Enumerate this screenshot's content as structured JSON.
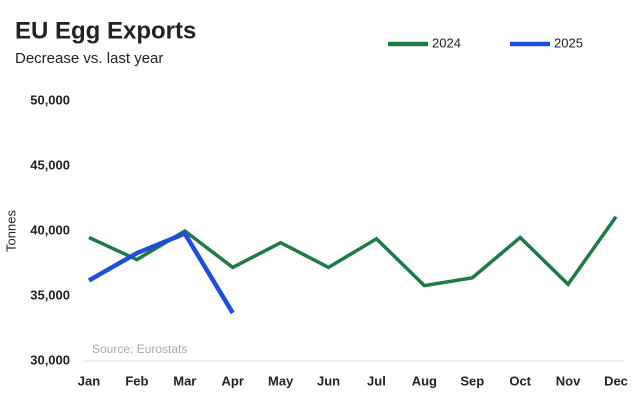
{
  "chart_data": {
    "type": "line",
    "title": "EU Egg Exports",
    "subtitle": "Decrease vs. last year",
    "y_label": "Tonnes",
    "annotation": "Source: Eurostats",
    "categories": [
      "Jan",
      "Feb",
      "Mar",
      "Apr",
      "May",
      "Jun",
      "Jul",
      "Aug",
      "Sep",
      "Oct",
      "Nov",
      "Dec"
    ],
    "series": [
      {
        "name": "2024",
        "color": "#1e7a46",
        "values": [
          39500,
          37800,
          40000,
          37200,
          39100,
          37200,
          39400,
          35800,
          36400,
          39500,
          35900,
          41100
        ]
      },
      {
        "name": "2025",
        "color": "#1f4fd8",
        "values": [
          36200,
          38300,
          39800,
          33700,
          null,
          null,
          null,
          null,
          null,
          null,
          null,
          null
        ]
      }
    ],
    "ylim": [
      30000,
      50000
    ],
    "yticks": [
      {
        "value": 30000,
        "label": "30,000"
      },
      {
        "value": 35000,
        "label": "35,000"
      },
      {
        "value": 40000,
        "label": "40,000"
      },
      {
        "value": 45000,
        "label": "45,000"
      },
      {
        "value": 50000,
        "label": "50,000"
      }
    ],
    "grid": false,
    "legend": "top"
  }
}
